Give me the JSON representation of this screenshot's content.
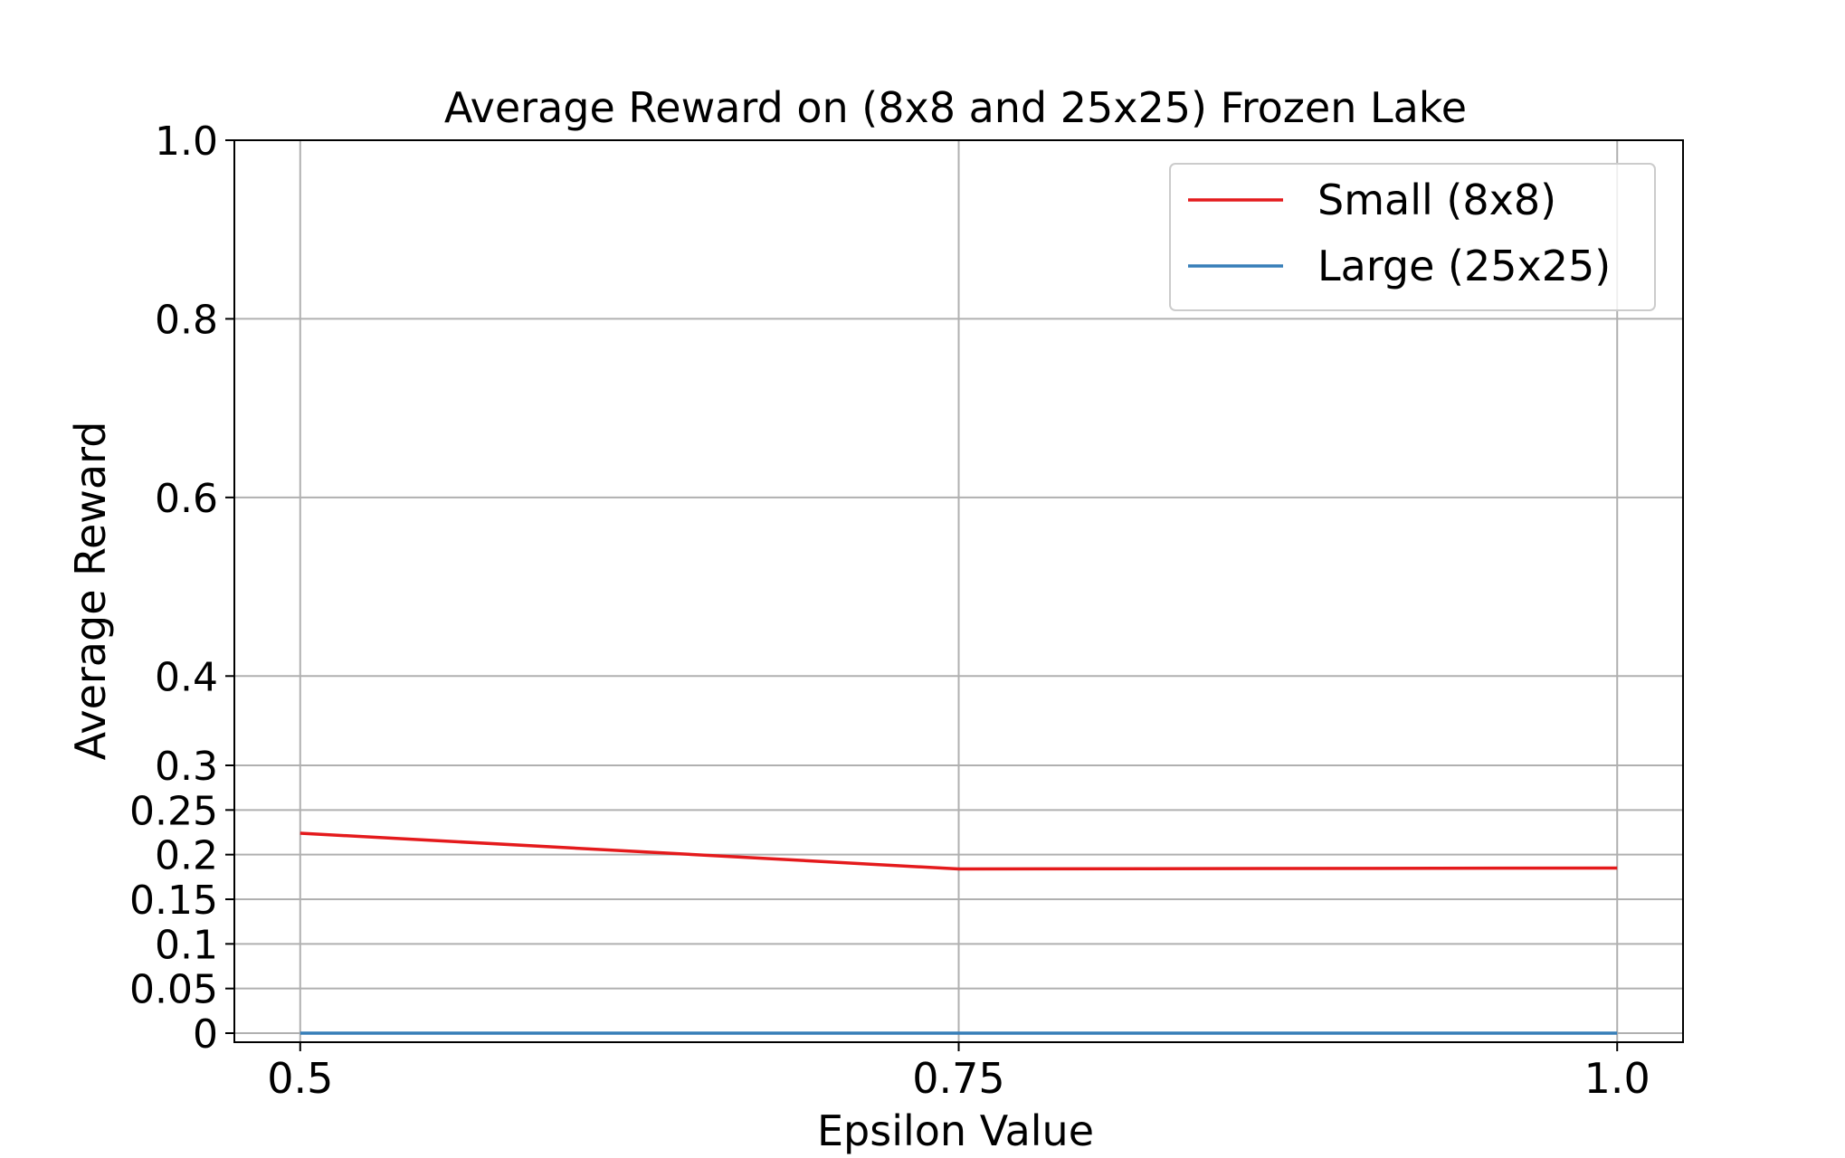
{
  "chart_data": {
    "type": "line",
    "title": "Average Reward on (8x8 and 25x25) Frozen Lake",
    "xlabel": "Epsilon Value",
    "ylabel": "Average Reward",
    "x": [
      0.5,
      0.75,
      1.0
    ],
    "x_tick_labels": [
      "0.5",
      "0.75",
      "1.0"
    ],
    "xlim": [
      0.475,
      1.025
    ],
    "ylim": [
      -0.01,
      1.0
    ],
    "y_ticks": [
      0,
      0.05,
      0.1,
      0.15,
      0.2,
      0.25,
      0.3,
      0.4,
      0.6,
      0.8,
      1.0
    ],
    "y_tick_labels": [
      "0",
      "0.05",
      "0.1",
      "0.15",
      "0.2",
      "0.25",
      "0.3",
      "0.4",
      "0.6",
      "0.8",
      "1.0"
    ],
    "y_scale": "piecewise",
    "grid": true,
    "legend_position": "top-right",
    "series": [
      {
        "name": "Small (8x8)",
        "color": "#e41a1c",
        "values": [
          0.224,
          0.184,
          0.185
        ]
      },
      {
        "name": "Large (25x25)",
        "color": "#377eb8",
        "values": [
          0.0,
          0.0,
          0.0
        ]
      }
    ]
  }
}
